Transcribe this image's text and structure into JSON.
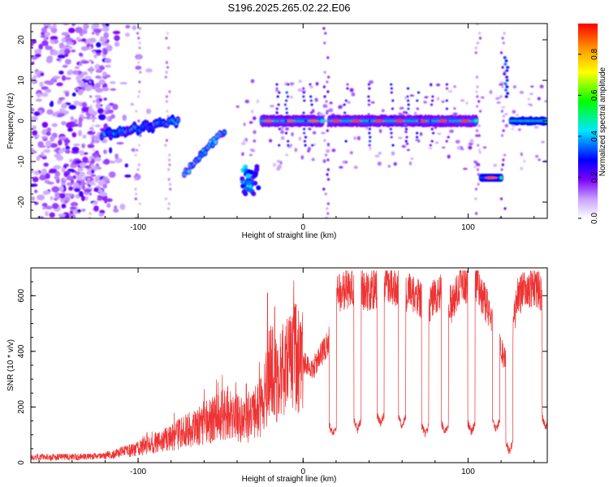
{
  "title": "S196.2025.265.02.22.E06",
  "chart_data": [
    {
      "type": "heatmap",
      "xlabel": "Height of straight line (km)",
      "ylabel": "Frequency (Hz)",
      "xlim": [
        -165,
        148
      ],
      "ylim": [
        -24,
        24
      ],
      "xticks": [
        -100,
        0,
        100
      ],
      "yticks": [
        -20,
        -10,
        0,
        10,
        20
      ],
      "colorbar": {
        "label": "Normalized spectral amplitude",
        "range": [
          0.0,
          0.95
        ],
        "ticks": [
          0.0,
          0.2,
          0.4,
          0.6,
          0.8
        ]
      },
      "features": [
        {
          "name": "noise-cloud",
          "x": [
            -165,
            -120
          ],
          "freq": [
            -24,
            24
          ],
          "amp": 0.15
        },
        {
          "name": "drift-1",
          "x": [
            -120,
            -75
          ],
          "freq": [
            -4,
            0
          ],
          "amp": 0.35
        },
        {
          "name": "drift-2",
          "x": [
            -72,
            -48
          ],
          "freq": [
            -13,
            -2
          ],
          "amp": 0.4
        },
        {
          "name": "blob-1",
          "x": [
            -38,
            -27
          ],
          "freq": [
            -17,
            -12
          ],
          "amp": 0.45
        },
        {
          "name": "line-1",
          "x": [
            -28,
            100
          ],
          "freq": [
            0,
            0
          ],
          "amp": 0.95
        },
        {
          "name": "blob-2",
          "x": [
            108,
            120
          ],
          "freq": [
            -14,
            -14
          ],
          "amp": 0.95
        },
        {
          "name": "line-2",
          "x": [
            126,
            148
          ],
          "freq": [
            0,
            0
          ],
          "amp": 0.5
        }
      ]
    },
    {
      "type": "line",
      "xlabel": "Height of straight line (km)",
      "ylabel": "SNR (10 * v/v)",
      "xlim": [
        -165,
        148
      ],
      "ylim": [
        0,
        700
      ],
      "xticks": [
        -100,
        0,
        100
      ],
      "yticks": [
        0,
        200,
        400,
        600
      ],
      "series": [
        {
          "name": "SNR",
          "color": "#ee3333",
          "x": [
            -165,
            -140,
            -120,
            -100,
            -80,
            -60,
            -45,
            -35,
            -25,
            -20,
            -15,
            -10,
            -5,
            0,
            5,
            10,
            15,
            20,
            30,
            40,
            47,
            52,
            60,
            70,
            75,
            80,
            85,
            90,
            95,
            100,
            106,
            112,
            118,
            124,
            130,
            135,
            140,
            145,
            148
          ],
          "values": [
            20,
            20,
            25,
            50,
            90,
            140,
            180,
            150,
            200,
            330,
            300,
            350,
            380,
            360,
            330,
            380,
            430,
            600,
            640,
            610,
            640,
            650,
            620,
            600,
            560,
            600,
            640,
            560,
            640,
            650,
            640,
            550,
            430,
            350,
            600,
            620,
            640,
            600,
            560
          ]
        }
      ],
      "dips": [
        {
          "x": 18,
          "value": 100
        },
        {
          "x": 33,
          "value": 120
        },
        {
          "x": 47,
          "value": 140
        },
        {
          "x": 60,
          "value": 130
        },
        {
          "x": 74,
          "value": 100
        },
        {
          "x": 86,
          "value": 110
        },
        {
          "x": 102,
          "value": 110
        },
        {
          "x": 117,
          "value": 120
        },
        {
          "x": 125,
          "value": 40
        },
        {
          "x": 147,
          "value": 130
        }
      ]
    }
  ]
}
